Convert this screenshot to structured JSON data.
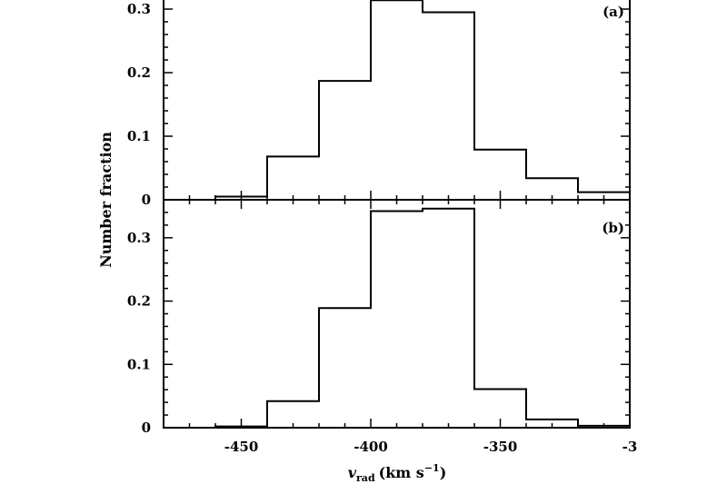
{
  "chart_data": [
    {
      "type": "bar",
      "panel_label": "(a)",
      "bin_edges": [
        -460,
        -440,
        -420,
        -400,
        -380,
        -360,
        -340,
        -320,
        -300
      ],
      "values": [
        0.005,
        0.068,
        0.187,
        0.314,
        0.295,
        0.079,
        0.034,
        0.012
      ],
      "xlim": [
        -480,
        -300
      ],
      "ylim": [
        0,
        0.34
      ],
      "y_ticks": [
        "0",
        "0.1",
        "0.2",
        "0.3"
      ]
    },
    {
      "type": "bar",
      "panel_label": "(b)",
      "bin_edges": [
        -460,
        -440,
        -420,
        -400,
        -380,
        -360,
        -340,
        -320,
        -300
      ],
      "values": [
        0.002,
        0.042,
        0.189,
        0.342,
        0.346,
        0.061,
        0.013,
        0.003
      ],
      "xlim": [
        -480,
        -300
      ],
      "ylim": [
        0,
        0.36
      ],
      "y_ticks": [
        "0",
        "0.1",
        "0.2",
        "0.3"
      ]
    }
  ],
  "x_axis": {
    "tick_labels": [
      "-450",
      "-400",
      "-350",
      "-3"
    ],
    "label_main": "v",
    "label_sub": "rad",
    "label_units": "(km s",
    "label_exp": "−1",
    "label_close": ")"
  },
  "y_axis": {
    "label": "Number fraction"
  }
}
